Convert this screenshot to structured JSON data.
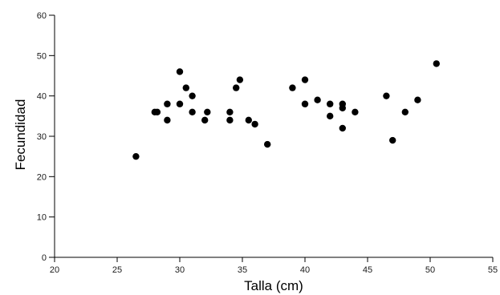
{
  "chart_data": {
    "type": "scatter",
    "xlabel": "Talla (cm)",
    "ylabel": "Fecundidad",
    "xlim": [
      20,
      55
    ],
    "ylim": [
      0,
      60
    ],
    "xticks": [
      20,
      25,
      30,
      35,
      40,
      45,
      50,
      55
    ],
    "yticks": [
      0,
      10,
      20,
      30,
      40,
      50,
      60
    ],
    "grid": false,
    "point_color": "#000000",
    "series": [
      {
        "points": [
          [
            26.5,
            25
          ],
          [
            28,
            36
          ],
          [
            28.2,
            36
          ],
          [
            29,
            34
          ],
          [
            29,
            38
          ],
          [
            30,
            46
          ],
          [
            30,
            38
          ],
          [
            30.5,
            42
          ],
          [
            31,
            40
          ],
          [
            31,
            36
          ],
          [
            32,
            34
          ],
          [
            32.2,
            36
          ],
          [
            34,
            34
          ],
          [
            34,
            36
          ],
          [
            34.5,
            42
          ],
          [
            34.8,
            44
          ],
          [
            35.5,
            34
          ],
          [
            36,
            33
          ],
          [
            37,
            28
          ],
          [
            39,
            42
          ],
          [
            40,
            44
          ],
          [
            40,
            38
          ],
          [
            41,
            39
          ],
          [
            42,
            38
          ],
          [
            42,
            35
          ],
          [
            43,
            38
          ],
          [
            43,
            37
          ],
          [
            43,
            32
          ],
          [
            44,
            36
          ],
          [
            46.5,
            40
          ],
          [
            47,
            29
          ],
          [
            48,
            36
          ],
          [
            49,
            39
          ],
          [
            50.5,
            48
          ]
        ]
      }
    ]
  }
}
